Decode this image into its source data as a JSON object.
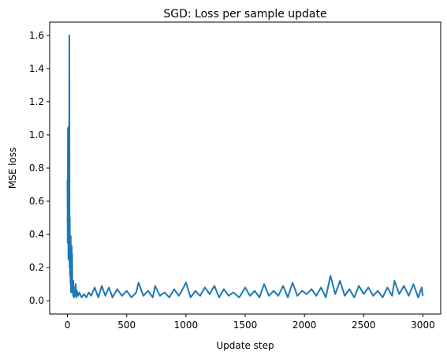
{
  "chart_data": {
    "type": "line",
    "title": "SGD: Loss per sample update",
    "xlabel": "Update step",
    "ylabel": "MSE loss",
    "xlim": [
      -150,
      3150
    ],
    "ylim": [
      -0.08,
      1.68
    ],
    "x_ticks": [
      0,
      500,
      1000,
      1500,
      2000,
      2500,
      3000
    ],
    "x_tick_labels": [
      "0",
      "500",
      "1000",
      "1500",
      "2000",
      "2500",
      "3000"
    ],
    "y_ticks": [
      0.0,
      0.2,
      0.4,
      0.6,
      0.8,
      1.0,
      1.2,
      1.4,
      1.6
    ],
    "y_tick_labels": [
      "0.0",
      "0.2",
      "0.4",
      "0.6",
      "0.8",
      "1.0",
      "1.2",
      "1.4",
      "1.6"
    ],
    "grid": false,
    "series": [
      {
        "color": "#1f77b4",
        "x": [
          0,
          2,
          4,
          6,
          8,
          10,
          12,
          14,
          16,
          18,
          20,
          22,
          24,
          26,
          28,
          30,
          32,
          34,
          36,
          38,
          40,
          42,
          45,
          48,
          50,
          55,
          60,
          65,
          70,
          75,
          80,
          90,
          100,
          120,
          140,
          160,
          180,
          200,
          230,
          260,
          290,
          320,
          350,
          380,
          420,
          460,
          500,
          540,
          580,
          600,
          640,
          680,
          720,
          740,
          780,
          820,
          860,
          900,
          940,
          980,
          1000,
          1040,
          1080,
          1120,
          1160,
          1200,
          1240,
          1280,
          1320,
          1360,
          1400,
          1450,
          1500,
          1540,
          1580,
          1620,
          1660,
          1700,
          1740,
          1780,
          1820,
          1860,
          1900,
          1940,
          1980,
          2020,
          2060,
          2100,
          2140,
          2180,
          2220,
          2260,
          2300,
          2340,
          2380,
          2420,
          2460,
          2500,
          2540,
          2580,
          2620,
          2660,
          2700,
          2740,
          2760,
          2800,
          2840,
          2880,
          2920,
          2960,
          2990,
          2999
        ],
        "y": [
          0.73,
          0.35,
          1.04,
          0.55,
          0.25,
          1.05,
          0.4,
          0.3,
          1.6,
          0.2,
          0.5,
          0.15,
          0.33,
          0.1,
          0.39,
          0.05,
          0.3,
          0.2,
          0.33,
          0.1,
          0.28,
          0.05,
          0.12,
          0.03,
          0.12,
          0.02,
          0.08,
          0.03,
          0.1,
          0.02,
          0.06,
          0.03,
          0.05,
          0.02,
          0.04,
          0.02,
          0.05,
          0.03,
          0.08,
          0.02,
          0.09,
          0.03,
          0.08,
          0.02,
          0.07,
          0.03,
          0.06,
          0.02,
          0.05,
          0.11,
          0.03,
          0.06,
          0.02,
          0.09,
          0.03,
          0.05,
          0.02,
          0.07,
          0.03,
          0.08,
          0.11,
          0.02,
          0.06,
          0.03,
          0.08,
          0.04,
          0.09,
          0.02,
          0.07,
          0.03,
          0.05,
          0.02,
          0.08,
          0.03,
          0.06,
          0.02,
          0.1,
          0.03,
          0.06,
          0.03,
          0.09,
          0.02,
          0.11,
          0.03,
          0.06,
          0.04,
          0.07,
          0.03,
          0.08,
          0.02,
          0.15,
          0.04,
          0.12,
          0.03,
          0.07,
          0.02,
          0.09,
          0.04,
          0.08,
          0.03,
          0.06,
          0.02,
          0.08,
          0.03,
          0.12,
          0.04,
          0.09,
          0.03,
          0.1,
          0.02,
          0.08,
          0.03
        ]
      }
    ]
  }
}
